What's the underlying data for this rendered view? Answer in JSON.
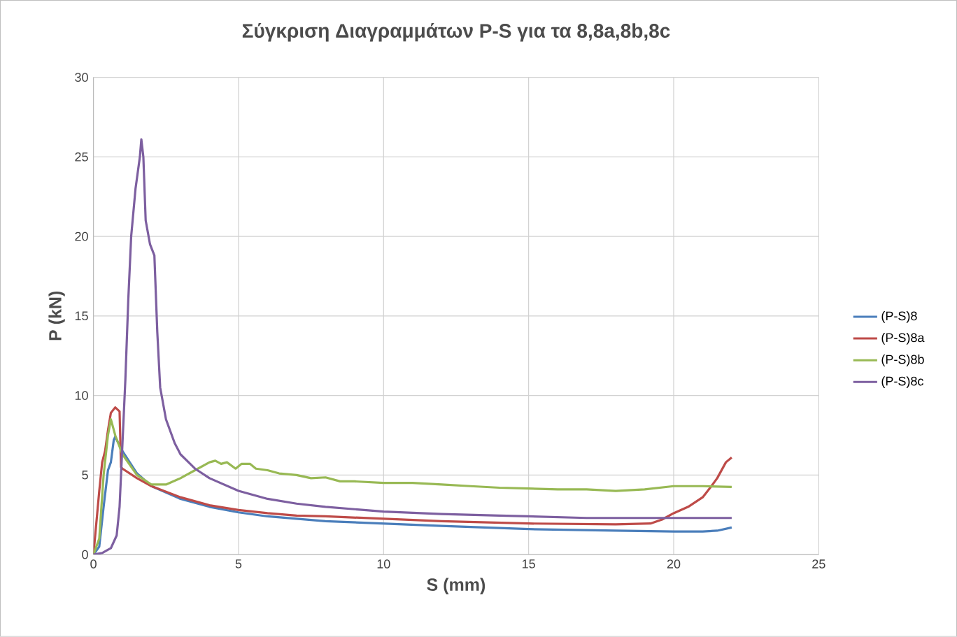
{
  "chart_data": {
    "type": "line",
    "title": "Σύγκριση Διαγραμμάτων P-S για τα 8,8a,8b,8c",
    "xlabel": "S (mm)",
    "ylabel": "P (kN)",
    "xlim": [
      0,
      25
    ],
    "xticks": [
      0,
      5,
      10,
      15,
      20,
      25
    ],
    "ylim": [
      0,
      30
    ],
    "yticks": [
      0,
      5,
      10,
      15,
      20,
      25,
      30
    ],
    "grid": true,
    "legend": "right",
    "marker": "none",
    "line_style": "solid",
    "series": [
      {
        "name": "(P-S)8",
        "color": "#4a7ebb",
        "x": [
          0,
          0.2,
          0.35,
          0.5,
          0.6,
          0.7,
          0.75,
          1.0,
          1.5,
          2,
          3,
          4,
          5,
          6,
          7,
          8,
          10,
          12,
          15,
          18,
          20,
          21,
          21.5,
          22
        ],
        "values": [
          0,
          0.5,
          3,
          5.3,
          5.8,
          7.2,
          7.4,
          6.5,
          5.1,
          4.3,
          3.5,
          3.0,
          2.65,
          2.4,
          2.25,
          2.1,
          1.95,
          1.8,
          1.6,
          1.5,
          1.45,
          1.45,
          1.5,
          1.7
        ]
      },
      {
        "name": "(P-S)8a",
        "color": "#be4b48",
        "x": [
          0,
          0.1,
          0.2,
          0.3,
          0.4,
          0.5,
          0.6,
          0.75,
          0.9,
          0.95,
          1.0,
          1.5,
          2,
          3,
          4,
          5,
          6,
          7,
          8,
          10,
          12,
          15,
          18,
          19.2,
          19.6,
          20,
          20.5,
          21,
          21.3,
          21.5,
          21.8,
          22
        ],
        "values": [
          0,
          2,
          4,
          5.8,
          6.5,
          7.8,
          8.9,
          9.25,
          9.0,
          5.5,
          5.4,
          4.8,
          4.3,
          3.6,
          3.1,
          2.8,
          2.6,
          2.45,
          2.4,
          2.25,
          2.1,
          1.95,
          1.9,
          1.95,
          2.2,
          2.6,
          3.0,
          3.6,
          4.3,
          4.8,
          5.8,
          6.1
        ]
      },
      {
        "name": "(P-S)8b",
        "color": "#98b954",
        "x": [
          0,
          0.2,
          0.35,
          0.5,
          0.6,
          0.75,
          1,
          1.5,
          2,
          2.5,
          3,
          3.5,
          4,
          4.2,
          4.4,
          4.6,
          4.9,
          5.1,
          5.4,
          5.6,
          6,
          6.4,
          7,
          7.5,
          8,
          8.5,
          9,
          10,
          11,
          12,
          13,
          14,
          15,
          16,
          17,
          18,
          19,
          20,
          21,
          22
        ],
        "values": [
          0,
          1,
          5,
          7.5,
          8.5,
          7.5,
          6.3,
          5.0,
          4.4,
          4.4,
          4.8,
          5.3,
          5.8,
          5.9,
          5.7,
          5.8,
          5.4,
          5.7,
          5.7,
          5.4,
          5.3,
          5.1,
          5.0,
          4.8,
          4.85,
          4.6,
          4.6,
          4.5,
          4.5,
          4.4,
          4.3,
          4.2,
          4.15,
          4.1,
          4.1,
          4.0,
          4.1,
          4.3,
          4.3,
          4.25
        ]
      },
      {
        "name": "(P-S)8c",
        "color": "#7d5fa0",
        "x": [
          0,
          0.3,
          0.6,
          0.8,
          0.9,
          1.0,
          1.1,
          1.2,
          1.3,
          1.45,
          1.6,
          1.65,
          1.72,
          1.8,
          1.95,
          2.1,
          2.2,
          2.3,
          2.5,
          2.8,
          3,
          3.5,
          4,
          5,
          6,
          7,
          8,
          9,
          10,
          12,
          14,
          15,
          17,
          20,
          22
        ],
        "values": [
          0,
          0.1,
          0.4,
          1.2,
          3,
          7,
          11,
          16,
          20,
          23,
          25,
          26.1,
          25,
          21,
          19.5,
          18.8,
          14,
          10.5,
          8.5,
          7,
          6.3,
          5.4,
          4.8,
          4.0,
          3.5,
          3.2,
          3.0,
          2.85,
          2.7,
          2.55,
          2.45,
          2.4,
          2.3,
          2.3,
          2.3
        ]
      }
    ]
  }
}
